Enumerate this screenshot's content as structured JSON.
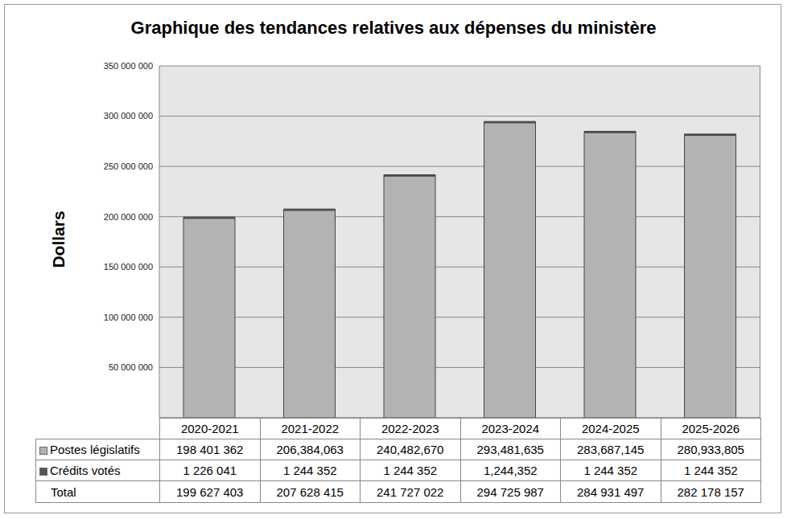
{
  "chart_data": {
    "type": "bar",
    "title": "Graphique des tendances relatives aux dépenses du ministère",
    "y_label": "Dollars",
    "categories": [
      "2020-2021",
      "2021-2022",
      "2022-2023",
      "2023-2024",
      "2024-2025",
      "2025-2026"
    ],
    "series": [
      {
        "name": "Postes législatifs",
        "color": "#b3b3b3",
        "values": [
          198401362,
          206384063,
          240482670,
          293481635,
          283687145,
          280933805
        ],
        "value_labels": [
          "198 401 362",
          "206,384,063",
          "240,482,670",
          "293,481,635",
          "283,687,145",
          "280,933,805"
        ]
      },
      {
        "name": "Crédits votés",
        "color": "#555555",
        "values": [
          1226041,
          1244352,
          1244352,
          1244352,
          1244352,
          1244352
        ],
        "value_labels": [
          "1 226 041",
          "1 244 352",
          "1 244 352",
          "1,244,352",
          "1 244 352",
          "1 244 352"
        ]
      }
    ],
    "totals": {
      "name": "Total",
      "values": [
        199627403,
        207628415,
        241727022,
        294725987,
        284931497,
        282178157
      ],
      "value_labels": [
        "199 627 403",
        "207 628 415",
        "241 727 022",
        "294 725 987",
        "284 931 497",
        "282 178 157"
      ]
    },
    "stacked": true,
    "grid": true,
    "ylim": [
      0,
      350000000
    ],
    "yticks": [
      {
        "value": 50000000,
        "label": "50 000 000"
      },
      {
        "value": 100000000,
        "label": "100 000 000"
      },
      {
        "value": 150000000,
        "label": "150 000 000"
      },
      {
        "value": 200000000,
        "label": "200 000 000"
      },
      {
        "value": 250000000,
        "label": "250 000 000"
      },
      {
        "value": 300000000,
        "label": "300 000 000"
      },
      {
        "value": 350000000,
        "label": "350 000 000"
      }
    ]
  }
}
